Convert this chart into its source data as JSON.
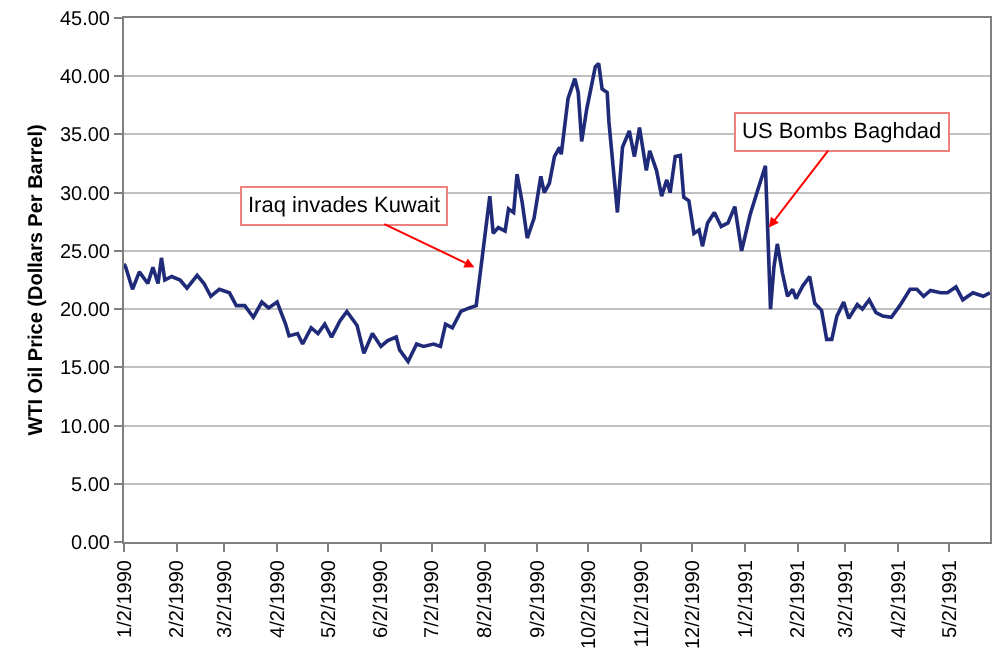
{
  "chart_data": {
    "type": "line",
    "ylabel": "WTI Oil Price (Dollars Per Barrel)",
    "x": [
      "1990-01-02",
      "1990-01-03",
      "1990-01-07",
      "1990-01-11",
      "1990-01-16",
      "1990-01-19",
      "1990-01-22",
      "1990-01-24",
      "1990-01-26",
      "1990-01-30",
      "1990-02-04",
      "1990-02-08",
      "1990-02-14",
      "1990-02-18",
      "1990-02-22",
      "1990-02-27",
      "1990-03-05",
      "1990-03-09",
      "1990-03-14",
      "1990-03-19",
      "1990-03-24",
      "1990-03-28",
      "1990-04-02",
      "1990-04-07",
      "1990-04-09",
      "1990-04-14",
      "1990-04-17",
      "1990-04-22",
      "1990-04-26",
      "1990-04-30",
      "1990-05-04",
      "1990-05-09",
      "1990-05-13",
      "1990-05-19",
      "1990-05-23",
      "1990-05-28",
      "1990-06-02",
      "1990-06-06",
      "1990-06-11",
      "1990-06-13",
      "1990-06-18",
      "1990-06-23",
      "1990-06-27",
      "1990-07-03",
      "1990-07-07",
      "1990-07-10",
      "1990-07-14",
      "1990-07-19",
      "1990-07-24",
      "1990-07-28",
      "1990-07-31",
      "1990-08-05",
      "1990-08-07",
      "1990-08-10",
      "1990-08-14",
      "1990-08-16",
      "1990-08-19",
      "1990-08-21",
      "1990-08-24",
      "1990-08-27",
      "1990-08-31",
      "1990-09-04",
      "1990-09-06",
      "1990-09-09",
      "1990-09-12",
      "1990-09-15",
      "1990-09-16",
      "1990-09-20",
      "1990-09-24",
      "1990-09-26",
      "1990-09-28",
      "1990-10-01",
      "1990-10-06",
      "1990-10-08",
      "1990-10-10",
      "1990-10-13",
      "1990-10-14",
      "1990-10-19",
      "1990-10-22",
      "1990-10-26",
      "1990-10-29",
      "1990-11-01",
      "1990-11-05",
      "1990-11-07",
      "1990-11-11",
      "1990-11-14",
      "1990-11-17",
      "1990-11-19",
      "1990-11-22",
      "1990-11-25",
      "1990-11-27",
      "1990-11-30",
      "1990-12-03",
      "1990-12-06",
      "1990-12-08",
      "1990-12-11",
      "1990-12-15",
      "1990-12-19",
      "1990-12-23",
      "1990-12-27",
      "1990-12-31",
      "1991-01-05",
      "1991-01-09",
      "1991-01-14",
      "1991-01-17",
      "1991-01-19",
      "1991-01-21",
      "1991-01-24",
      "1991-01-27",
      "1991-01-30",
      "1991-02-01",
      "1991-02-05",
      "1991-02-09",
      "1991-02-12",
      "1991-02-16",
      "1991-02-19",
      "1991-02-22",
      "1991-02-25",
      "1991-03-01",
      "1991-03-04",
      "1991-03-09",
      "1991-03-12",
      "1991-03-16",
      "1991-03-20",
      "1991-03-24",
      "1991-03-29",
      "1991-04-03",
      "1991-04-09",
      "1991-04-13",
      "1991-04-17",
      "1991-04-21",
      "1991-04-27",
      "1991-05-01",
      "1991-05-06",
      "1991-05-10",
      "1991-05-16",
      "1991-05-22",
      "1991-05-26"
    ],
    "series": [
      {
        "color": "#1f2a78",
        "values": [
          23.9,
          23.6,
          21.7,
          23.2,
          22.2,
          23.6,
          22.2,
          24.4,
          22.5,
          22.8,
          22.5,
          21.8,
          22.9,
          22.2,
          21.1,
          21.7,
          21.4,
          20.3,
          20.3,
          19.3,
          20.6,
          20.1,
          20.6,
          18.7,
          17.7,
          17.9,
          17.0,
          18.4,
          17.9,
          18.7,
          17.6,
          19.0,
          19.8,
          18.6,
          16.2,
          17.9,
          16.8,
          17.3,
          17.6,
          16.5,
          15.5,
          17.0,
          16.8,
          17.0,
          16.8,
          18.7,
          18.4,
          19.8,
          20.1,
          20.3,
          23.8,
          29.7,
          26.5,
          27.0,
          26.7,
          28.6,
          28.3,
          31.6,
          29.2,
          26.1,
          27.8,
          31.4,
          30.0,
          30.8,
          33.1,
          33.9,
          33.3,
          38.1,
          39.8,
          38.6,
          34.4,
          37.2,
          40.8,
          41.1,
          38.9,
          38.6,
          36.1,
          28.3,
          33.9,
          35.3,
          33.1,
          35.6,
          31.9,
          33.6,
          31.9,
          29.7,
          31.1,
          30.0,
          33.1,
          33.2,
          29.6,
          29.3,
          26.5,
          26.8,
          25.4,
          27.4,
          28.3,
          27.1,
          27.4,
          28.8,
          25.0,
          28.1,
          30.0,
          32.3,
          20.0,
          23.6,
          25.6,
          23.1,
          21.1,
          21.7,
          20.9,
          22.0,
          22.8,
          20.5,
          19.9,
          17.4,
          17.4,
          19.4,
          20.6,
          19.2,
          20.4,
          20.0,
          20.8,
          19.7,
          19.4,
          19.3,
          20.3,
          21.7,
          21.7,
          21.1,
          21.6,
          21.4,
          21.4,
          21.9,
          20.8,
          21.4,
          21.1,
          21.4
        ]
      }
    ],
    "xlim": [
      "1990-01-02",
      "1991-05-26"
    ],
    "xticks": [
      {
        "value": "1990-01-02",
        "label": "1/2/1990"
      },
      {
        "value": "1990-02-02",
        "label": "2/2/1990"
      },
      {
        "value": "1990-03-02",
        "label": "3/2/1990"
      },
      {
        "value": "1990-04-02",
        "label": "4/2/1990"
      },
      {
        "value": "1990-05-02",
        "label": "5/2/1990"
      },
      {
        "value": "1990-06-02",
        "label": "6/2/1990"
      },
      {
        "value": "1990-07-02",
        "label": "7/2/1990"
      },
      {
        "value": "1990-08-02",
        "label": "8/2/1990"
      },
      {
        "value": "1990-09-02",
        "label": "9/2/1990"
      },
      {
        "value": "1990-10-02",
        "label": "10/2/1990"
      },
      {
        "value": "1990-11-02",
        "label": "11/2/1990"
      },
      {
        "value": "1990-12-02",
        "label": "12/2/1990"
      },
      {
        "value": "1991-01-02",
        "label": "1/2/1991"
      },
      {
        "value": "1991-02-02",
        "label": "2/2/1991"
      },
      {
        "value": "1991-03-02",
        "label": "3/2/1991"
      },
      {
        "value": "1991-04-02",
        "label": "4/2/1991"
      },
      {
        "value": "1991-05-02",
        "label": "5/2/1991"
      }
    ],
    "ylim": [
      0,
      45
    ],
    "yticks": [
      {
        "value": 0,
        "label": "0.00"
      },
      {
        "value": 5,
        "label": "5.00"
      },
      {
        "value": 10,
        "label": "10.00"
      },
      {
        "value": 15,
        "label": "15.00"
      },
      {
        "value": 20,
        "label": "20.00"
      },
      {
        "value": 25,
        "label": "25.00"
      },
      {
        "value": 30,
        "label": "30.00"
      },
      {
        "value": 35,
        "label": "35.00"
      },
      {
        "value": 40,
        "label": "40.00"
      },
      {
        "value": 45,
        "label": "45.00"
      }
    ],
    "grid": "y",
    "annotations": [
      {
        "text": "Iraq invades Kuwait",
        "x": "1990-07-27",
        "y": 23.6
      },
      {
        "text": "US Bombs Baghdad",
        "x": "1991-01-16",
        "y": 27.0
      }
    ]
  }
}
